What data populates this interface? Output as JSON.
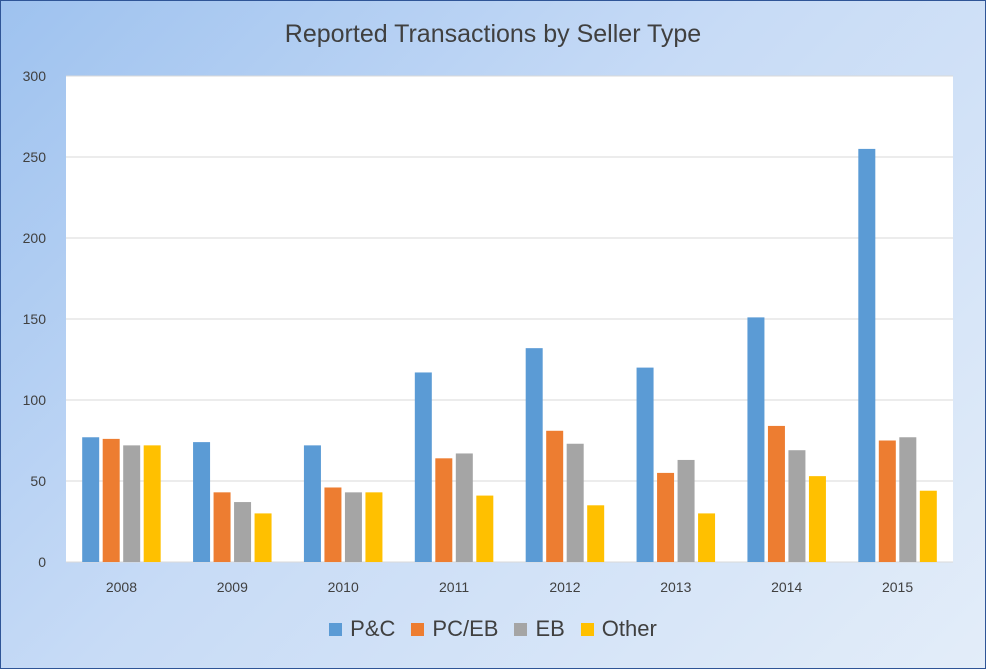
{
  "chart_data": {
    "type": "bar",
    "title": "Reported Transactions by Seller Type",
    "xlabel": "",
    "ylabel": "",
    "categories": [
      "2008",
      "2009",
      "2010",
      "2011",
      "2012",
      "2013",
      "2014",
      "2015"
    ],
    "ylim": [
      0,
      300
    ],
    "yticks": [
      0,
      50,
      100,
      150,
      200,
      250,
      300
    ],
    "grid": true,
    "legend_position": "bottom",
    "series": [
      {
        "name": "P&C",
        "color": "#5b9bd5",
        "values": [
          77,
          74,
          72,
          117,
          132,
          120,
          151,
          255
        ]
      },
      {
        "name": "PC/EB",
        "color": "#ed7d31",
        "values": [
          76,
          43,
          46,
          64,
          81,
          55,
          84,
          75
        ]
      },
      {
        "name": "EB",
        "color": "#a5a5a5",
        "values": [
          72,
          37,
          43,
          67,
          73,
          63,
          69,
          77
        ]
      },
      {
        "name": "Other",
        "color": "#ffc000",
        "values": [
          72,
          30,
          43,
          41,
          35,
          30,
          53,
          44
        ]
      }
    ]
  }
}
